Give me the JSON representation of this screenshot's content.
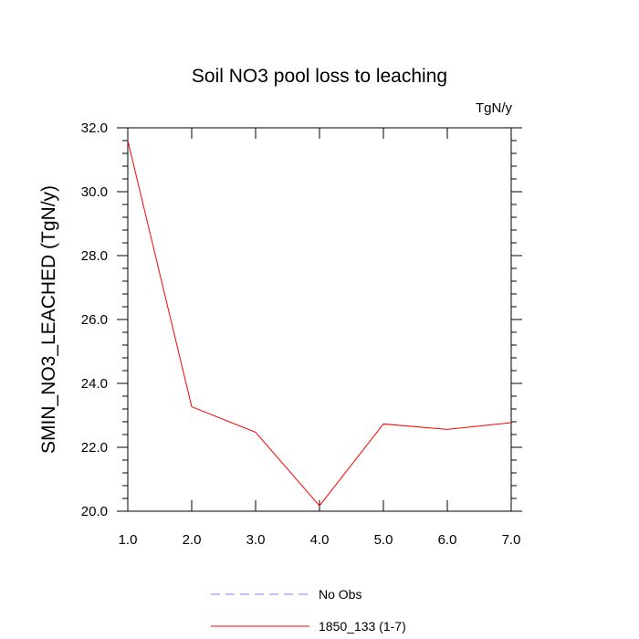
{
  "chart_data": {
    "type": "line",
    "title": "Soil NO3 pool loss to leaching",
    "units_label": "TgN/y",
    "ylabel": "SMIN_NO3_LEACHED  (TgN/y)",
    "xlabel": "",
    "xlim": [
      1.0,
      7.0
    ],
    "ylim": [
      20.0,
      32.0
    ],
    "x_ticks": [
      1.0,
      2.0,
      3.0,
      4.0,
      5.0,
      6.0,
      7.0
    ],
    "x_tick_labels": [
      "1.0",
      "2.0",
      "3.0",
      "4.0",
      "5.0",
      "6.0",
      "7.0"
    ],
    "y_ticks": [
      20.0,
      22.0,
      24.0,
      26.0,
      28.0,
      30.0,
      32.0
    ],
    "y_tick_labels": [
      "20.0",
      "22.0",
      "24.0",
      "26.0",
      "28.0",
      "30.0",
      "32.0"
    ],
    "grid": false,
    "legend_position": "bottom",
    "series": [
      {
        "name": "No Obs",
        "color": "#8080ff",
        "dash": "dashed",
        "x": [],
        "y": []
      },
      {
        "name": "1850_133 (1-7)",
        "color": "#ff0000",
        "dash": "solid",
        "x": [
          1.0,
          2.0,
          3.0,
          4.0,
          5.0,
          6.0,
          7.0
        ],
        "y": [
          31.6,
          23.27,
          22.47,
          20.17,
          22.73,
          22.56,
          22.77
        ]
      }
    ]
  }
}
